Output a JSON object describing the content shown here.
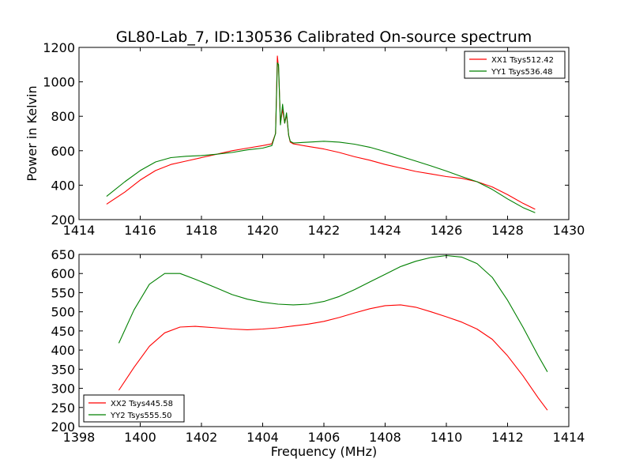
{
  "figure": {
    "title": "GL80-Lab_7, ID:130536 Calibrated On-source spectrum"
  },
  "chart_data": [
    {
      "type": "line",
      "title": "GL80-Lab_7, ID:130536 Calibrated On-source spectrum",
      "xlabel": "",
      "ylabel": "Power in Kelvin",
      "xlim": [
        1414,
        1430
      ],
      "ylim": [
        200,
        1200
      ],
      "xticks": [
        1414,
        1416,
        1418,
        1420,
        1422,
        1424,
        1426,
        1428,
        1430
      ],
      "yticks": [
        200,
        400,
        600,
        800,
        1000,
        1200
      ],
      "grid": false,
      "legend_position": "top-right",
      "series": [
        {
          "name": "XX1 Tsys512.42",
          "color": "#ff0000",
          "x": [
            1414.9,
            1415.5,
            1416,
            1416.5,
            1417,
            1417.5,
            1418,
            1418.5,
            1419,
            1419.5,
            1420,
            1420.3,
            1420.42,
            1420.48,
            1420.52,
            1420.58,
            1420.65,
            1420.72,
            1420.78,
            1420.85,
            1420.9,
            1421,
            1421.5,
            1422,
            1422.5,
            1423,
            1423.5,
            1424,
            1424.5,
            1425,
            1425.5,
            1426,
            1426.5,
            1427,
            1427.5,
            1428,
            1428.5,
            1428.9
          ],
          "y": [
            290,
            360,
            430,
            485,
            520,
            540,
            560,
            580,
            600,
            615,
            630,
            640,
            700,
            1150,
            1080,
            760,
            840,
            760,
            810,
            690,
            650,
            640,
            625,
            610,
            590,
            565,
            545,
            520,
            500,
            480,
            465,
            450,
            440,
            420,
            390,
            345,
            295,
            260
          ]
        },
        {
          "name": "YY1 Tsys536.48",
          "color": "#008000",
          "x": [
            1414.9,
            1415.5,
            1416,
            1416.5,
            1417,
            1417.5,
            1418,
            1418.5,
            1419,
            1419.5,
            1420,
            1420.3,
            1420.42,
            1420.48,
            1420.52,
            1420.58,
            1420.65,
            1420.72,
            1420.78,
            1420.85,
            1420.9,
            1421,
            1421.5,
            1422,
            1422.5,
            1423,
            1423.5,
            1424,
            1424.5,
            1425,
            1425.5,
            1426,
            1426.5,
            1427,
            1427.5,
            1428,
            1428.5,
            1428.9
          ],
          "y": [
            335,
            420,
            485,
            535,
            560,
            568,
            572,
            580,
            590,
            605,
            615,
            630,
            700,
            1110,
            1100,
            750,
            870,
            760,
            820,
            690,
            655,
            645,
            650,
            655,
            650,
            638,
            620,
            595,
            568,
            540,
            512,
            482,
            450,
            420,
            375,
            320,
            270,
            240
          ]
        }
      ]
    },
    {
      "type": "line",
      "title": "",
      "xlabel": "Frequency (MHz)",
      "ylabel": "",
      "xlim": [
        1398,
        1414
      ],
      "ylim": [
        200,
        650
      ],
      "xticks": [
        1398,
        1400,
        1402,
        1404,
        1406,
        1408,
        1410,
        1412,
        1414
      ],
      "yticks": [
        200,
        250,
        300,
        350,
        400,
        450,
        500,
        550,
        600,
        650
      ],
      "grid": false,
      "legend_position": "bottom-left",
      "series": [
        {
          "name": "XX2 Tsys445.58",
          "color": "#ff0000",
          "x": [
            1399.3,
            1399.8,
            1400.3,
            1400.8,
            1401.3,
            1401.8,
            1402.5,
            1403,
            1403.5,
            1404,
            1404.5,
            1405,
            1405.5,
            1406,
            1406.5,
            1407,
            1407.5,
            1408,
            1408.5,
            1409,
            1409.5,
            1410,
            1410.5,
            1411,
            1411.5,
            1412,
            1412.5,
            1413,
            1413.3
          ],
          "y": [
            295,
            355,
            410,
            445,
            460,
            462,
            458,
            455,
            453,
            455,
            458,
            463,
            468,
            475,
            485,
            497,
            508,
            516,
            518,
            512,
            500,
            487,
            473,
            455,
            428,
            385,
            333,
            275,
            243
          ]
        },
        {
          "name": "YY2 Tsys555.50",
          "color": "#008000",
          "x": [
            1399.3,
            1399.8,
            1400.3,
            1400.8,
            1401.3,
            1401.8,
            1402.5,
            1403,
            1403.5,
            1404,
            1404.5,
            1405,
            1405.5,
            1406,
            1406.5,
            1407,
            1407.5,
            1408,
            1408.5,
            1409,
            1409.5,
            1410,
            1410.5,
            1411,
            1411.5,
            1412,
            1412.5,
            1413,
            1413.3
          ],
          "y": [
            418,
            505,
            572,
            600,
            600,
            585,
            562,
            545,
            533,
            525,
            520,
            518,
            520,
            527,
            540,
            558,
            578,
            598,
            618,
            632,
            642,
            647,
            643,
            626,
            590,
            530,
            460,
            385,
            343
          ]
        }
      ]
    }
  ]
}
